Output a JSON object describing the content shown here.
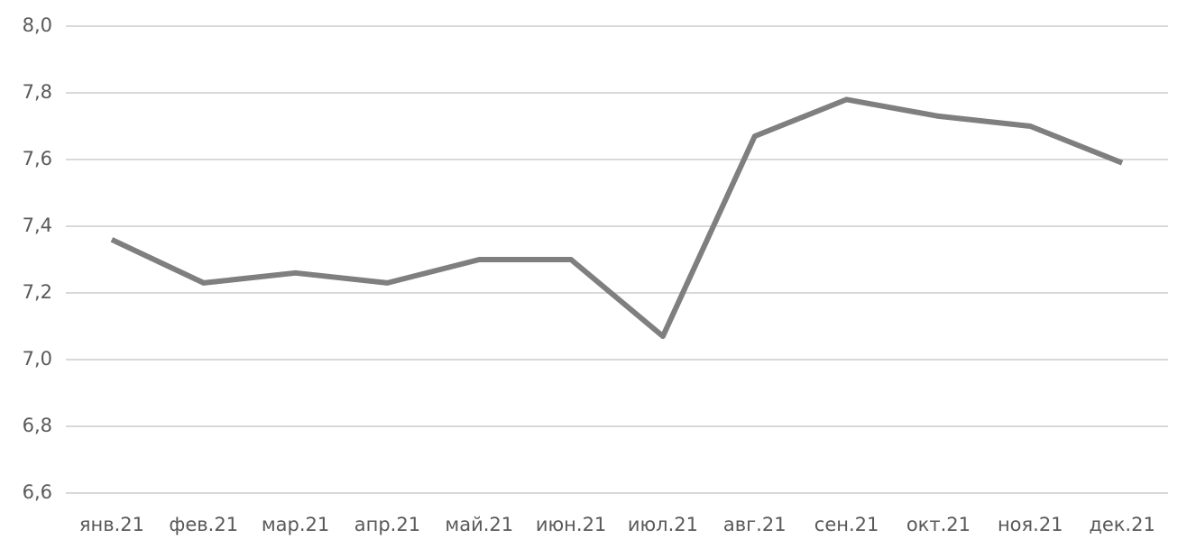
{
  "chart_data": {
    "type": "line",
    "categories": [
      "янв.21",
      "фев.21",
      "мар.21",
      "апр.21",
      "май.21",
      "июн.21",
      "июл.21",
      "авг.21",
      "сен.21",
      "окт.21",
      "ноя.21",
      "дек.21"
    ],
    "values": [
      7.36,
      7.23,
      7.26,
      7.23,
      7.3,
      7.3,
      7.07,
      7.67,
      7.78,
      7.73,
      7.7,
      7.59
    ],
    "color": "#7f7f7f",
    "ylim": [
      6.6,
      8.0
    ],
    "yticks": [
      {
        "value": 6.6,
        "label": "6,6"
      },
      {
        "value": 6.8,
        "label": "6,8"
      },
      {
        "value": 7.0,
        "label": "7,0"
      },
      {
        "value": 7.2,
        "label": "7,2"
      },
      {
        "value": 7.4,
        "label": "7,4"
      },
      {
        "value": 7.6,
        "label": "7,6"
      },
      {
        "value": 7.8,
        "label": "7,8"
      },
      {
        "value": 8.0,
        "label": "8,0"
      }
    ],
    "grid": true
  }
}
